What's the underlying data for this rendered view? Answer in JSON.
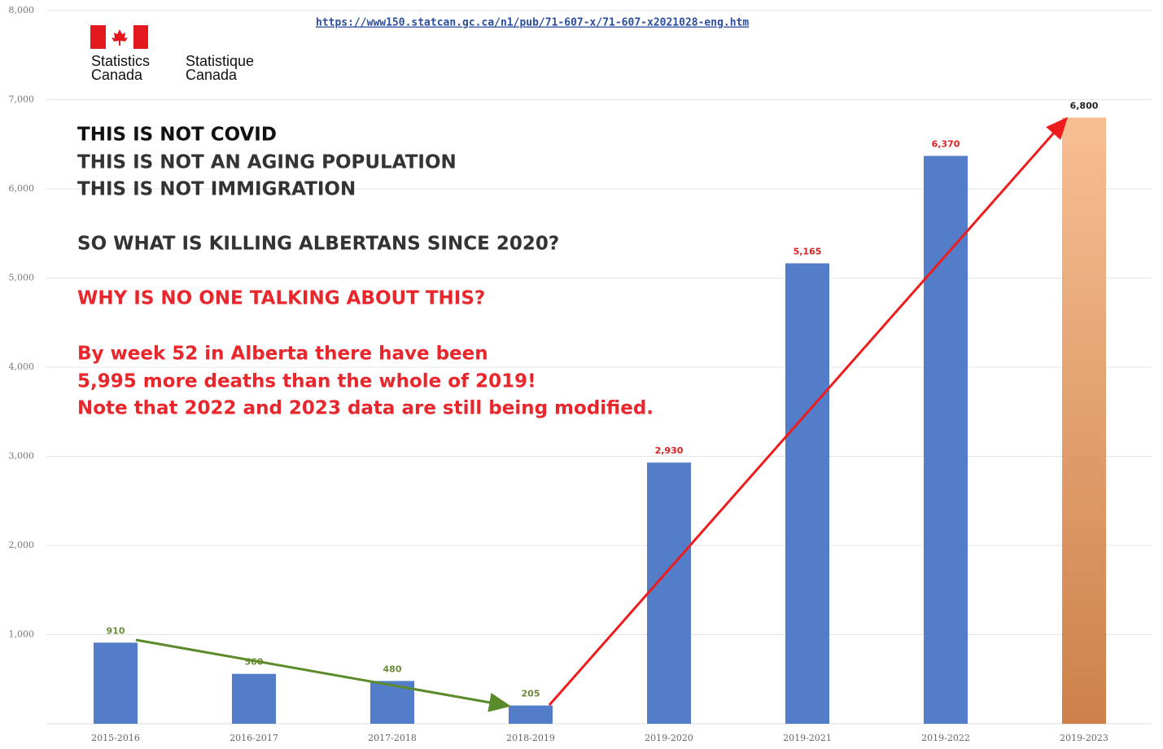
{
  "logo": {
    "en_line1": "Statistics",
    "en_line2": "Canada",
    "fr_line1": "Statistique",
    "fr_line2": "Canada"
  },
  "chart_data": {
    "type": "bar",
    "source": "https://www150.statcan.gc.ca/n1/pub/71-607-x/71-607-x2021028-eng.htm",
    "annotations": [
      "THIS IS NOT COVID",
      "THIS IS NOT AN AGING POPULATION",
      "THIS IS NOT IMMIGRATION",
      "SO WHAT IS KILLING ALBERTANS SINCE 2020?",
      "WHY IS NO ONE TALKING ABOUT THIS?",
      "By week 52 in Alberta there have been",
      "5,995 more deaths than the whole of 2019!",
      "Note that 2022 and 2023 data are still being modified."
    ],
    "annotation_colors": [
      "#111111",
      "#333333",
      "#333333",
      "#333333",
      "#e8262b",
      "#e8262b",
      "#e8262b",
      "#e8262b"
    ],
    "categories": [
      "2015-2016",
      "2016-2017",
      "2017-2018",
      "2018-2019",
      "2019-2020",
      "2019-2021",
      "2019-2022",
      "2019-2023"
    ],
    "values": [
      910,
      560,
      480,
      205,
      2930,
      5165,
      6370,
      6800
    ],
    "value_labels": [
      "910",
      "560",
      "480",
      "205",
      "2,930",
      "5,165",
      "6,370",
      "6,800"
    ],
    "colors": [
      "#4472c4",
      "#4472c4",
      "#4472c4",
      "#4472c4",
      "#4472c4",
      "#4472c4",
      "#4472c4",
      "#e08a4a"
    ],
    "value_label_colors": [
      "#6a8a3a",
      "#6a8a3a",
      "#6a8a3a",
      "#6a8a3a",
      "#e02020",
      "#e02020",
      "#e02020",
      "#222222"
    ],
    "ylim": [
      0,
      8000
    ],
    "yticks": [
      {
        "value": 1000,
        "label": "1,000"
      },
      {
        "value": 2000,
        "label": "2,000"
      },
      {
        "value": 3000,
        "label": "3,000"
      },
      {
        "value": 4000,
        "label": "4,000"
      },
      {
        "value": 5000,
        "label": "5,000"
      },
      {
        "value": 6000,
        "label": "6,000"
      },
      {
        "value": 7000,
        "label": "7,000"
      },
      {
        "value": 8000,
        "label": "8,000"
      }
    ],
    "grid": true
  }
}
